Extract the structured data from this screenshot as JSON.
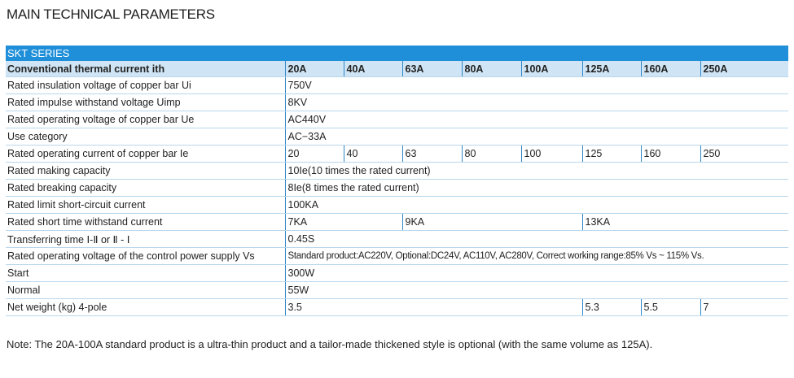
{
  "title": "MAIN TECHNICAL PARAMETERS",
  "table": {
    "series": "SKT SERIES",
    "header": [
      "Conventional thermal current ith",
      "20A",
      "40A",
      "63A",
      "80A",
      "100A",
      "125A",
      "160A",
      "250A"
    ],
    "rows": [
      [
        "Rated insulation voltage of copper bar Ui",
        "750V"
      ],
      [
        "Rated impulse withstand voltage Uimp",
        "8KV"
      ],
      [
        "Rated operating voltage of copper bar Ue",
        "AC440V"
      ],
      [
        "Use category",
        "AC−33A"
      ],
      [
        "Rated operating current of copper bar Ie",
        "20",
        "40",
        "63",
        "80",
        "100",
        "125",
        "160",
        "250"
      ],
      [
        "Rated making capacity",
        "10Ie(10 times the rated current)"
      ],
      [
        "Rated breaking capacity",
        "8Ie(8 times the rated current)"
      ],
      [
        "Rated limit short-circuit current",
        "100KA"
      ],
      [
        "Rated short time withstand current",
        "7KA",
        "9KA",
        "13KA"
      ],
      [
        "Transferring time Ⅰ-Ⅱ or Ⅱ - Ⅰ",
        "0.45S"
      ],
      [
        "Rated operating voltage of the control power supply Vs",
        "Standard product:AC220V,  Optional:DC24V, AC110V, AC280V,  Correct working range:85% Vs ~ 115% Vs."
      ],
      [
        "Start",
        "300W"
      ],
      [
        "Normal",
        "55W"
      ],
      [
        "Net weight (kg)  4-pole",
        "3.5",
        "5.3",
        "5.5",
        "7"
      ]
    ]
  },
  "note": "Note: The 20A-100A standard product is a ultra-thin product and a tailor-made thickened style is optional (with the same volume as 125A)."
}
